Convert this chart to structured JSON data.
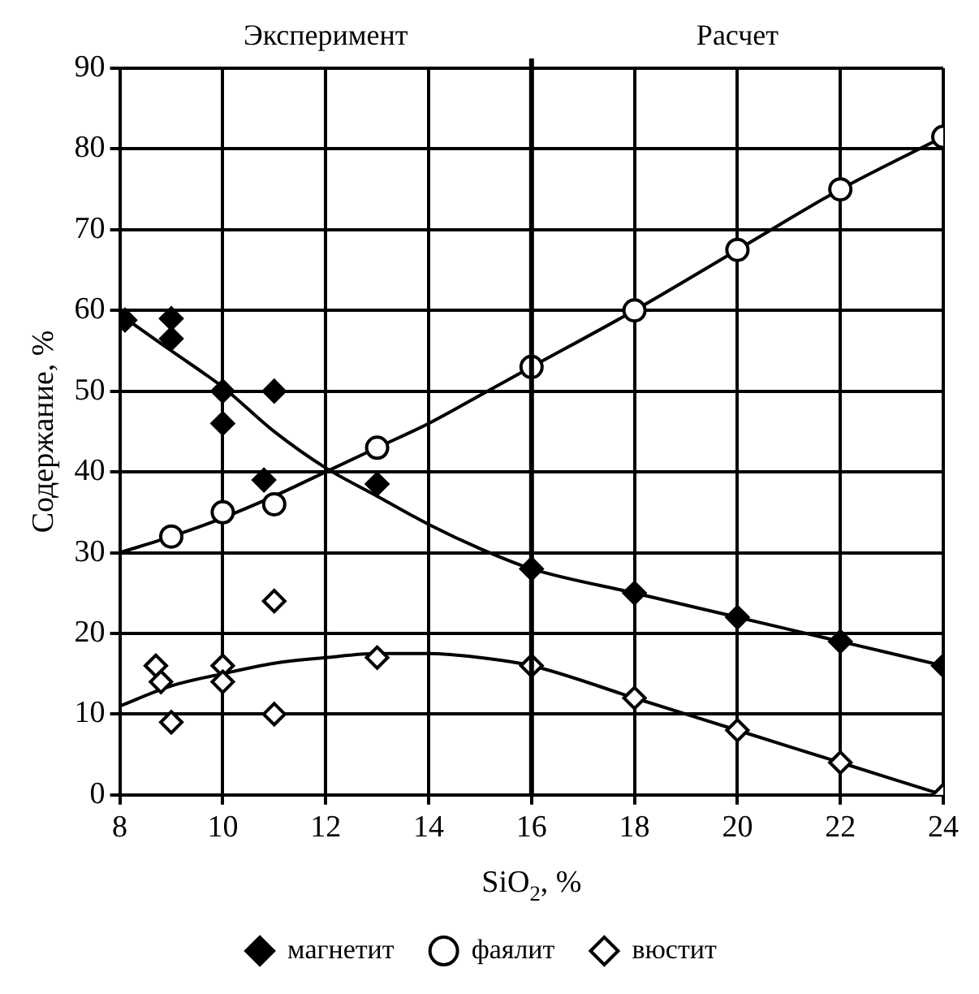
{
  "chart_data": {
    "type": "line",
    "xlabel": "SiO$_{2}$, %",
    "ylabel": "Содержание, %",
    "annotations": [
      "Эксперимент",
      "Расчет"
    ],
    "xlim": [
      8,
      24
    ],
    "xticks": [
      8,
      10,
      12,
      14,
      16,
      18,
      20,
      22,
      24
    ],
    "ylim": [
      0,
      90
    ],
    "yticks": [
      0,
      10,
      20,
      30,
      40,
      50,
      60,
      70,
      80,
      90
    ],
    "grid": true,
    "legend": "bottom",
    "ref_lines": [
      {
        "axis": "x",
        "value": 16,
        "color": "#000000"
      }
    ],
    "series": [
      {
        "name": "магнетит",
        "type": "scatter",
        "color": "#000000",
        "marker": "diamond",
        "x": [
          8.1,
          9,
          9,
          10,
          10,
          11,
          10.8,
          13,
          16,
          18,
          20,
          22,
          24
        ],
        "values": [
          58.8,
          59,
          56.5,
          50,
          46,
          50,
          39,
          38.5,
          28,
          25,
          22,
          19,
          16
        ]
      },
      {
        "name": "фаялит",
        "type": "scatter",
        "color": "#ffffff",
        "marker": "circle",
        "x": [
          9,
          10,
          11,
          13,
          16,
          18,
          20,
          22,
          24
        ],
        "values": [
          32,
          35,
          36,
          43,
          53,
          60,
          67.5,
          75,
          81.5
        ]
      },
      {
        "name": "вюстит",
        "type": "scatter",
        "color": "#ffffff",
        "marker": "diamond",
        "x": [
          8.7,
          8.8,
          9,
          10,
          10,
          11,
          11,
          13,
          16,
          18,
          20,
          22,
          24
        ],
        "values": [
          16,
          14,
          9,
          16,
          14,
          24,
          10,
          17,
          16,
          12,
          8,
          4,
          0
        ]
      },
      {
        "color": "#000000",
        "marker": "none",
        "x": [
          8,
          9,
          10,
          11,
          12,
          13,
          14,
          15,
          16,
          18,
          20,
          22,
          24
        ],
        "values": [
          59.5,
          55,
          50.5,
          45,
          40.5,
          37,
          33.5,
          30.5,
          28,
          25,
          22,
          19,
          16
        ]
      },
      {
        "color": "#000000",
        "marker": "none",
        "x": [
          8,
          9,
          10,
          11,
          12,
          13,
          14,
          15,
          16,
          18,
          20,
          22,
          24
        ],
        "values": [
          30,
          32,
          34.3,
          37,
          40,
          43,
          46,
          49.5,
          53,
          60,
          67.5,
          75,
          81.5
        ]
      },
      {
        "color": "#000000",
        "marker": "none",
        "x": [
          8,
          9,
          10,
          11,
          12,
          13,
          14,
          15,
          16,
          18,
          20,
          22,
          24
        ],
        "values": [
          11,
          13.5,
          15,
          16.3,
          17,
          17.5,
          17.5,
          17,
          16,
          12,
          8,
          4,
          0
        ]
      }
    ]
  }
}
